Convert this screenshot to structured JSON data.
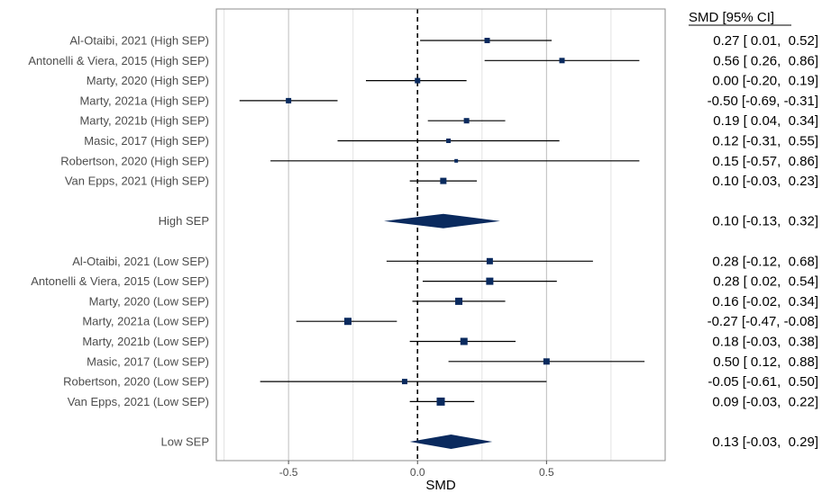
{
  "chart_data": {
    "type": "forest",
    "xlabel": "SMD",
    "xlim": [
      -0.78,
      0.96
    ],
    "xticks": [
      -0.5,
      0.0,
      0.5
    ],
    "xtick_labels": [
      "-0.5",
      "0.0",
      "0.5"
    ],
    "minor_gridlines": [
      -0.75,
      -0.25,
      0.25,
      0.75
    ],
    "reference_line": 0,
    "grid": true,
    "ci_header": "SMD [95% CI]",
    "colors": {
      "marker": "#0a2a5e",
      "diamond": "#0a2a5e",
      "line": "#000000",
      "grid": "#bdbdbd"
    },
    "rows": [
      {
        "label": "Al-Otaibi, 2021 (High SEP)",
        "est": 0.27,
        "lo": 0.01,
        "hi": 0.52,
        "kind": "study",
        "size": 6,
        "ci_text": "0.27 [ 0.01,  0.52]"
      },
      {
        "label": "Antonelli & Viera, 2015 (High SEP)",
        "est": 0.56,
        "lo": 0.26,
        "hi": 0.86,
        "kind": "study",
        "size": 6,
        "ci_text": "0.56 [ 0.26,  0.86]"
      },
      {
        "label": "Marty, 2020 (High SEP)",
        "est": 0.0,
        "lo": -0.2,
        "hi": 0.19,
        "kind": "study",
        "size": 6,
        "ci_text": "0.00 [-0.20,  0.19]"
      },
      {
        "label": "Marty, 2021a (High SEP)",
        "est": -0.5,
        "lo": -0.69,
        "hi": -0.31,
        "kind": "study",
        "size": 6,
        "ci_text": "-0.50 [-0.69, -0.31]"
      },
      {
        "label": "Marty, 2021b (High SEP)",
        "est": 0.19,
        "lo": 0.04,
        "hi": 0.34,
        "kind": "study",
        "size": 6,
        "ci_text": "0.19 [ 0.04,  0.34]"
      },
      {
        "label": "Masic, 2017 (High SEP)",
        "est": 0.12,
        "lo": -0.31,
        "hi": 0.55,
        "kind": "study",
        "size": 5,
        "ci_text": "0.12 [-0.31,  0.55]"
      },
      {
        "label": "Robertson, 2020 (High SEP)",
        "est": 0.15,
        "lo": -0.57,
        "hi": 0.86,
        "kind": "study",
        "size": 4,
        "ci_text": "0.15 [-0.57,  0.86]"
      },
      {
        "label": "Van Epps, 2021 (High SEP)",
        "est": 0.1,
        "lo": -0.03,
        "hi": 0.23,
        "kind": "study",
        "size": 7,
        "ci_text": "0.10 [-0.03,  0.23]"
      },
      {
        "label": "High SEP",
        "est": 0.1,
        "lo": -0.13,
        "hi": 0.32,
        "kind": "summary",
        "ci_text": "0.10 [-0.13,  0.32]"
      },
      {
        "label": "Al-Otaibi, 2021 (Low SEP)",
        "est": 0.28,
        "lo": -0.12,
        "hi": 0.68,
        "kind": "study",
        "size": 7,
        "ci_text": "0.28 [-0.12,  0.68]"
      },
      {
        "label": "Antonelli & Viera, 2015 (Low SEP)",
        "est": 0.28,
        "lo": 0.02,
        "hi": 0.54,
        "kind": "study",
        "size": 8,
        "ci_text": "0.28 [ 0.02,  0.54]"
      },
      {
        "label": "Marty, 2020 (Low SEP)",
        "est": 0.16,
        "lo": -0.02,
        "hi": 0.34,
        "kind": "study",
        "size": 8,
        "ci_text": "0.16 [-0.02,  0.34]"
      },
      {
        "label": "Marty, 2021a (Low SEP)",
        "est": -0.27,
        "lo": -0.47,
        "hi": -0.08,
        "kind": "study",
        "size": 8,
        "ci_text": "-0.27 [-0.47, -0.08]"
      },
      {
        "label": "Marty, 2021b (Low SEP)",
        "est": 0.18,
        "lo": -0.03,
        "hi": 0.38,
        "kind": "study",
        "size": 8,
        "ci_text": "0.18 [-0.03,  0.38]"
      },
      {
        "label": "Masic, 2017 (Low SEP)",
        "est": 0.5,
        "lo": 0.12,
        "hi": 0.88,
        "kind": "study",
        "size": 7,
        "ci_text": "0.50 [ 0.12,  0.88]"
      },
      {
        "label": "Robertson, 2020 (Low SEP)",
        "est": -0.05,
        "lo": -0.61,
        "hi": 0.5,
        "kind": "study",
        "size": 6,
        "ci_text": "-0.05 [-0.61,  0.50]"
      },
      {
        "label": "Van Epps, 2021 (Low SEP)",
        "est": 0.09,
        "lo": -0.03,
        "hi": 0.22,
        "kind": "study",
        "size": 9,
        "ci_text": "0.09 [-0.03,  0.22]"
      },
      {
        "label": "Low SEP",
        "est": 0.13,
        "lo": -0.03,
        "hi": 0.29,
        "kind": "summary",
        "ci_text": "0.13 [-0.03,  0.29]"
      }
    ]
  }
}
